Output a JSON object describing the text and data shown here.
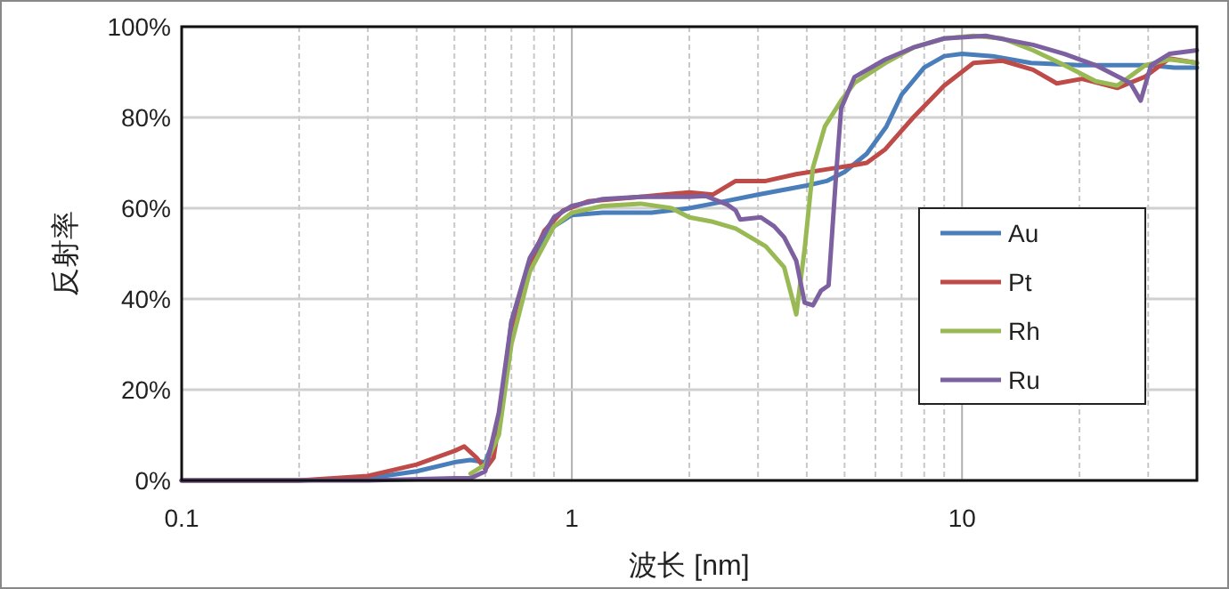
{
  "chart_data": {
    "type": "line",
    "xlabel": "波长 [nm]",
    "ylabel": "反射率",
    "log": "x",
    "xlim": [
      0.1,
      40
    ],
    "ylim": [
      0,
      100
    ],
    "xticks": [
      0.1,
      {
        "value": 0.2,
        "label": null
      },
      {
        "value": 0.3,
        "label": null
      },
      {
        "value": 0.4,
        "label": null
      },
      {
        "value": 0.5,
        "label": null
      },
      {
        "value": 0.6,
        "label": null
      },
      {
        "value": 0.7,
        "label": null
      },
      {
        "value": 0.8,
        "label": null
      },
      {
        "value": 0.9,
        "label": null
      },
      1,
      {
        "value": 2,
        "label": null
      },
      {
        "value": 3,
        "label": null
      },
      {
        "value": 4,
        "label": null
      },
      {
        "value": 5,
        "label": null
      },
      {
        "value": 6,
        "label": null
      },
      {
        "value": 7,
        "label": null
      },
      {
        "value": 8,
        "label": null
      },
      {
        "value": 9,
        "label": null
      },
      10,
      {
        "value": 20,
        "label": null
      },
      {
        "value": 30,
        "label": null
      },
      {
        "value": 40,
        "label": null
      }
    ],
    "yticks": [
      {
        "value": 0,
        "label": "0%"
      },
      {
        "value": 20,
        "label": "20%"
      },
      {
        "value": 40,
        "label": "40%"
      },
      {
        "value": 60,
        "label": "60%"
      },
      {
        "value": 80,
        "label": "80%"
      },
      {
        "value": 100,
        "label": "100%"
      }
    ],
    "grid": true,
    "legend": "right",
    "line_style": "solid",
    "marker": "none",
    "series": [
      {
        "name": "Au",
        "color": "#4a7ebb",
        "x": [
          0.1,
          0.2,
          0.3,
          0.4,
          0.5,
          0.55,
          0.6,
          0.65,
          0.7,
          0.78,
          0.9,
          1,
          1.2,
          1.6,
          2,
          2.3,
          3,
          4,
          4.5,
          5,
          5.7,
          6.4,
          7,
          8,
          9,
          10,
          12,
          15,
          20,
          25,
          30,
          35,
          40
        ],
        "values": [
          0,
          0,
          0.5,
          2,
          4,
          4.5,
          4,
          12,
          35,
          48,
          56,
          58.5,
          59,
          59,
          60,
          61,
          63,
          65,
          66,
          68,
          72,
          78,
          85,
          91,
          93.5,
          94,
          93.5,
          92,
          91.5,
          91.5,
          91.5,
          91,
          91
        ]
      },
      {
        "name": "Pt",
        "color": "#be4b48",
        "x": [
          0.1,
          0.2,
          0.3,
          0.4,
          0.5,
          0.53,
          0.57,
          0.6,
          0.63,
          0.67,
          0.72,
          0.78,
          0.85,
          0.95,
          1.1,
          1.5,
          2,
          2.3,
          2.63,
          3.14,
          3.76,
          4.45,
          5.3,
          5.7,
          6.36,
          7.5,
          9,
          10.7,
          12.7,
          15.2,
          17.5,
          20.3,
          25,
          29.5,
          34,
          40
        ],
        "values": [
          0,
          0,
          1,
          3.5,
          6.5,
          7.5,
          5,
          2.5,
          5,
          20,
          38,
          48,
          55,
          59.5,
          61.5,
          62.5,
          63.5,
          63,
          66,
          66,
          67.5,
          68.5,
          69.5,
          70,
          73,
          80,
          87,
          92,
          92.5,
          90.5,
          87.5,
          88.5,
          86.5,
          89,
          93,
          92
        ]
      },
      {
        "name": "Rh",
        "color": "#98b954",
        "x": [
          0.55,
          0.6,
          0.65,
          0.7,
          0.78,
          0.9,
          1,
          1.2,
          1.5,
          1.8,
          2,
          2.3,
          2.63,
          3.14,
          3.5,
          3.7,
          3.76,
          3.95,
          4.15,
          4.45,
          4.9,
          5.3,
          6.36,
          7.5,
          9,
          10.7,
          12.7,
          15.2,
          18.3,
          22,
          25,
          29.5,
          34,
          40
        ],
        "values": [
          1.5,
          3.5,
          10,
          30,
          46,
          56,
          59,
          60.5,
          61,
          60,
          58,
          57,
          55.5,
          51.6,
          47,
          39,
          36.6,
          51,
          69,
          78,
          83.7,
          87.6,
          92,
          95.4,
          97.4,
          98,
          97.4,
          94.8,
          91.5,
          88,
          87,
          91.5,
          92.8,
          92
        ]
      },
      {
        "name": "Ru",
        "color": "#7d60a0",
        "x": [
          0.1,
          0.2,
          0.3,
          0.5,
          0.55,
          0.6,
          0.65,
          0.7,
          0.78,
          0.9,
          1,
          1.2,
          1.5,
          2,
          2.2,
          2.5,
          2.63,
          2.7,
          3.05,
          3.3,
          3.5,
          3.76,
          3.95,
          4.15,
          4.35,
          4.55,
          4.75,
          4.9,
          5.3,
          6.36,
          7.5,
          9,
          11.5,
          15.2,
          18.3,
          22,
          27,
          28.7,
          30.5,
          34,
          40
        ],
        "values": [
          0,
          0,
          0,
          0.5,
          0.5,
          2,
          15,
          35,
          49,
          58,
          60.5,
          62,
          62.5,
          62.5,
          62.7,
          60.8,
          59.5,
          57.5,
          58,
          56,
          53.6,
          48.4,
          39.2,
          38.6,
          41.8,
          43,
          66.7,
          82,
          88.9,
          92.8,
          95.4,
          97.4,
          98,
          96,
          94,
          91.5,
          87.6,
          83.7,
          91.5,
          94,
          94.8
        ]
      }
    ]
  }
}
